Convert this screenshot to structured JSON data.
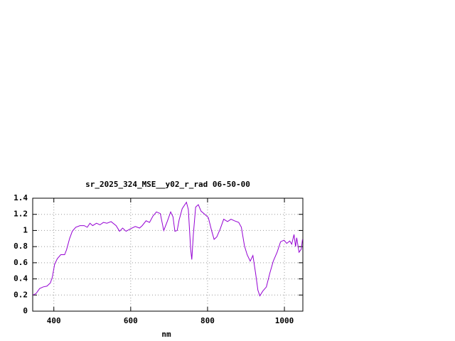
{
  "chart_data": {
    "type": "line",
    "title": "sr_2025_324_MSE__y02_r_rad 06-50-00",
    "x_label": "nm",
    "xlim": [
      345,
      1048
    ],
    "ylim": [
      0,
      1.4
    ],
    "xticks": [
      400,
      600,
      800,
      1000
    ],
    "yticks": [
      0,
      0.2,
      0.4,
      0.6,
      0.8,
      1,
      1.2,
      1.4
    ],
    "grid": true,
    "x": [
      346,
      354,
      363,
      372,
      382,
      391,
      396,
      402,
      409,
      418,
      428,
      433,
      441,
      448,
      457,
      468,
      479,
      487,
      494,
      501,
      511,
      520,
      529,
      538,
      549,
      562,
      571,
      579,
      588,
      599,
      612,
      623,
      630,
      640,
      649,
      658,
      667,
      677,
      686,
      695,
      704,
      710,
      715,
      721,
      726,
      734,
      745,
      750,
      756,
      759,
      763,
      769,
      776,
      783,
      793,
      802,
      811,
      817,
      824,
      833,
      842,
      852,
      861,
      870,
      881,
      888,
      896,
      903,
      911,
      918,
      925,
      931,
      936,
      944,
      953,
      962,
      971,
      981,
      990,
      999,
      1006,
      1014,
      1019,
      1025,
      1029,
      1032,
      1038,
      1044,
      1047
    ],
    "series": [
      {
        "color": "#9400d3",
        "values": [
          0.2,
          0.22,
          0.28,
          0.3,
          0.31,
          0.35,
          0.42,
          0.58,
          0.65,
          0.7,
          0.7,
          0.76,
          0.9,
          0.99,
          1.04,
          1.06,
          1.06,
          1.04,
          1.09,
          1.06,
          1.09,
          1.07,
          1.1,
          1.09,
          1.11,
          1.06,
          0.99,
          1.03,
          0.99,
          1.02,
          1.05,
          1.03,
          1.06,
          1.12,
          1.1,
          1.18,
          1.23,
          1.21,
          1.0,
          1.11,
          1.23,
          1.17,
          0.99,
          1.0,
          1.13,
          1.27,
          1.35,
          1.26,
          0.77,
          0.64,
          0.95,
          1.29,
          1.32,
          1.24,
          1.2,
          1.16,
          0.99,
          0.89,
          0.92,
          1.02,
          1.14,
          1.11,
          1.14,
          1.12,
          1.1,
          1.04,
          0.81,
          0.7,
          0.62,
          0.69,
          0.47,
          0.26,
          0.19,
          0.25,
          0.3,
          0.47,
          0.62,
          0.73,
          0.86,
          0.88,
          0.84,
          0.87,
          0.83,
          0.95,
          0.8,
          0.91,
          0.73,
          0.77,
          0.89
        ]
      }
    ]
  }
}
